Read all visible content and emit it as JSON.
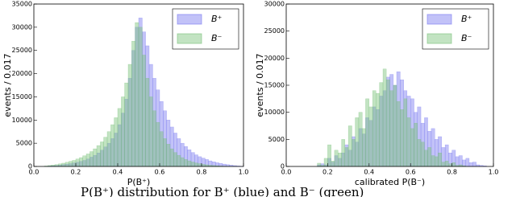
{
  "chart_data": [
    {
      "type": "histogram",
      "xlabel": "P(B⁺)",
      "ylabel": "events / 0.017",
      "bins": [
        0,
        0.017,
        0.033,
        0.05,
        0.067,
        0.083,
        0.1,
        0.117,
        0.133,
        0.15,
        0.167,
        0.183,
        0.2,
        0.217,
        0.233,
        0.25,
        0.267,
        0.283,
        0.3,
        0.317,
        0.333,
        0.35,
        0.367,
        0.383,
        0.4,
        0.417,
        0.433,
        0.45,
        0.467,
        0.483,
        0.5,
        0.517,
        0.533,
        0.55,
        0.567,
        0.583,
        0.6,
        0.617,
        0.633,
        0.65,
        0.667,
        0.683,
        0.7,
        0.717,
        0.733,
        0.75,
        0.767,
        0.783,
        0.8,
        0.817,
        0.833,
        0.85,
        0.867,
        0.883,
        0.9,
        0.917,
        0.933,
        0.95,
        0.967,
        0.983,
        1
      ],
      "series": [
        {
          "name": "B⁺",
          "color": "#7878f0",
          "values": [
            0,
            0,
            0,
            50,
            100,
            150,
            200,
            300,
            400,
            500,
            600,
            750,
            900,
            1100,
            1300,
            1600,
            2000,
            2400,
            2900,
            3500,
            4200,
            5000,
            6000,
            7200,
            9000,
            11500,
            14500,
            19000,
            25000,
            30000,
            32000,
            29000,
            26000,
            22000,
            19000,
            16500,
            14000,
            12000,
            10000,
            8500,
            7200,
            6000,
            5000,
            4300,
            3600,
            3000,
            2500,
            2100,
            1800,
            1500,
            1200,
            1000,
            800,
            650,
            500,
            380,
            280,
            180,
            100,
            40
          ]
        },
        {
          "name": "B⁻",
          "color": "#78c078",
          "values": [
            0,
            0,
            0,
            100,
            200,
            300,
            400,
            550,
            700,
            900,
            1100,
            1300,
            1600,
            1900,
            2300,
            2700,
            3200,
            3800,
            4500,
            5300,
            6300,
            7500,
            9000,
            10500,
            12500,
            15000,
            18000,
            22000,
            27000,
            31000,
            30000,
            24000,
            19000,
            15000,
            12000,
            9500,
            7500,
            6000,
            4800,
            3800,
            3000,
            2400,
            1900,
            1500,
            1200,
            950,
            750,
            600,
            450,
            350,
            260,
            190,
            130,
            90,
            60,
            40,
            20,
            10,
            0,
            0
          ]
        }
      ],
      "xlim": [
        0,
        1
      ],
      "ylim": [
        0,
        35000
      ],
      "xticks": [
        {
          "value": 0,
          "label": "0.0"
        },
        {
          "value": 0.2,
          "label": "0.2"
        },
        {
          "value": 0.4,
          "label": "0.4"
        },
        {
          "value": 0.6,
          "label": "0.6"
        },
        {
          "value": 0.8,
          "label": "0.8"
        },
        {
          "value": 1,
          "label": "1.0"
        }
      ],
      "yticks": [
        0,
        5000,
        10000,
        15000,
        20000,
        25000,
        30000,
        35000
      ],
      "legend": "upper right"
    },
    {
      "type": "histogram",
      "xlabel": "calibrated P(B⁻)",
      "ylabel": "events / 0.017",
      "bins": [
        0,
        0.017,
        0.033,
        0.05,
        0.067,
        0.083,
        0.1,
        0.117,
        0.133,
        0.15,
        0.167,
        0.183,
        0.2,
        0.217,
        0.233,
        0.25,
        0.267,
        0.283,
        0.3,
        0.317,
        0.333,
        0.35,
        0.367,
        0.383,
        0.4,
        0.417,
        0.433,
        0.45,
        0.467,
        0.483,
        0.5,
        0.517,
        0.533,
        0.55,
        0.567,
        0.583,
        0.6,
        0.617,
        0.633,
        0.65,
        0.667,
        0.683,
        0.7,
        0.717,
        0.733,
        0.75,
        0.767,
        0.783,
        0.8,
        0.817,
        0.833,
        0.85,
        0.867,
        0.883,
        0.9,
        0.917,
        0.933,
        0.95,
        0.967,
        0.983,
        1
      ],
      "series": [
        {
          "name": "B⁺",
          "color": "#7878f0",
          "values": [
            0,
            0,
            0,
            0,
            0,
            0,
            0,
            0,
            0,
            300,
            500,
            300,
            1500,
            800,
            2000,
            1500,
            2500,
            4000,
            3000,
            5500,
            4500,
            7000,
            6000,
            9000,
            8500,
            11000,
            10500,
            13000,
            14000,
            16500,
            17000,
            15000,
            17500,
            16000,
            14000,
            13000,
            12500,
            10000,
            11000,
            8000,
            9000,
            6500,
            7000,
            5000,
            5500,
            3500,
            4000,
            2500,
            3000,
            1800,
            2000,
            1200,
            1500,
            700,
            800,
            300,
            200,
            100,
            0,
            0
          ]
        },
        {
          "name": "B⁻",
          "color": "#78c078",
          "values": [
            0,
            0,
            0,
            0,
            0,
            0,
            0,
            0,
            0,
            600,
            200,
            1500,
            4000,
            1000,
            3000,
            2500,
            5000,
            3500,
            7500,
            5000,
            9000,
            10000,
            7000,
            12500,
            11000,
            14000,
            13500,
            15500,
            18000,
            16000,
            14000,
            15000,
            12000,
            10500,
            12500,
            9000,
            7000,
            8000,
            5000,
            4500,
            3000,
            3500,
            2000,
            1800,
            2500,
            800,
            1000,
            500,
            700,
            200,
            300,
            100,
            0,
            0,
            0,
            0,
            0,
            0,
            0,
            0
          ]
        }
      ],
      "xlim": [
        0,
        1
      ],
      "ylim": [
        0,
        30000
      ],
      "xticks": [
        {
          "value": 0,
          "label": "0.0"
        },
        {
          "value": 0.2,
          "label": "0.2"
        },
        {
          "value": 0.4,
          "label": "0.4"
        },
        {
          "value": 0.6,
          "label": "0.6"
        },
        {
          "value": 0.8,
          "label": "0.8"
        },
        {
          "value": 1,
          "label": "1.0"
        }
      ],
      "yticks": [
        0,
        5000,
        10000,
        15000,
        20000,
        25000,
        30000
      ],
      "legend": "upper right"
    }
  ],
  "caption": "P(B⁺) distribution for B⁺ (blue) and B⁻ (green)"
}
